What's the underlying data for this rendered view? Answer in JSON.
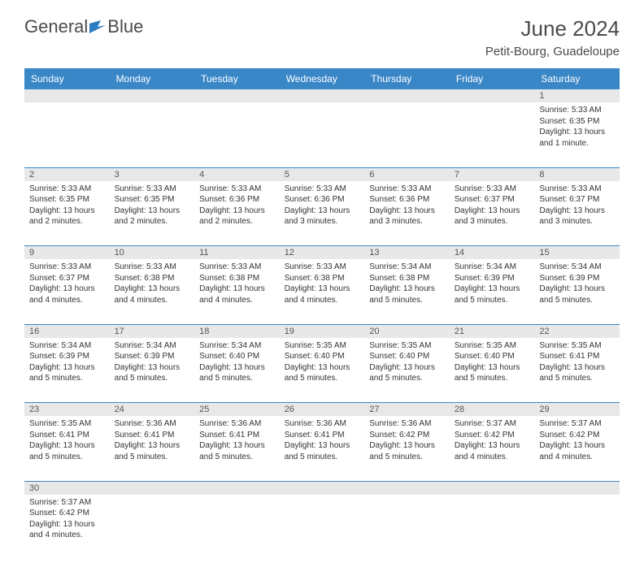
{
  "brand": {
    "name_part1": "General",
    "name_part2": "Blue"
  },
  "header": {
    "title": "June 2024",
    "location": "Petit-Bourg, Guadeloupe"
  },
  "colors": {
    "header_bg": "#3a87c8",
    "header_text": "#ffffff",
    "cell_border": "#3a87c8",
    "daynum_bg": "#e8e8e8",
    "text": "#333333"
  },
  "dayNames": [
    "Sunday",
    "Monday",
    "Tuesday",
    "Wednesday",
    "Thursday",
    "Friday",
    "Saturday"
  ],
  "weeks": [
    [
      null,
      null,
      null,
      null,
      null,
      null,
      {
        "n": "1",
        "sr": "Sunrise: 5:33 AM",
        "ss": "Sunset: 6:35 PM",
        "dl1": "Daylight: 13 hours",
        "dl2": "and 1 minute."
      }
    ],
    [
      {
        "n": "2",
        "sr": "Sunrise: 5:33 AM",
        "ss": "Sunset: 6:35 PM",
        "dl1": "Daylight: 13 hours",
        "dl2": "and 2 minutes."
      },
      {
        "n": "3",
        "sr": "Sunrise: 5:33 AM",
        "ss": "Sunset: 6:35 PM",
        "dl1": "Daylight: 13 hours",
        "dl2": "and 2 minutes."
      },
      {
        "n": "4",
        "sr": "Sunrise: 5:33 AM",
        "ss": "Sunset: 6:36 PM",
        "dl1": "Daylight: 13 hours",
        "dl2": "and 2 minutes."
      },
      {
        "n": "5",
        "sr": "Sunrise: 5:33 AM",
        "ss": "Sunset: 6:36 PM",
        "dl1": "Daylight: 13 hours",
        "dl2": "and 3 minutes."
      },
      {
        "n": "6",
        "sr": "Sunrise: 5:33 AM",
        "ss": "Sunset: 6:36 PM",
        "dl1": "Daylight: 13 hours",
        "dl2": "and 3 minutes."
      },
      {
        "n": "7",
        "sr": "Sunrise: 5:33 AM",
        "ss": "Sunset: 6:37 PM",
        "dl1": "Daylight: 13 hours",
        "dl2": "and 3 minutes."
      },
      {
        "n": "8",
        "sr": "Sunrise: 5:33 AM",
        "ss": "Sunset: 6:37 PM",
        "dl1": "Daylight: 13 hours",
        "dl2": "and 3 minutes."
      }
    ],
    [
      {
        "n": "9",
        "sr": "Sunrise: 5:33 AM",
        "ss": "Sunset: 6:37 PM",
        "dl1": "Daylight: 13 hours",
        "dl2": "and 4 minutes."
      },
      {
        "n": "10",
        "sr": "Sunrise: 5:33 AM",
        "ss": "Sunset: 6:38 PM",
        "dl1": "Daylight: 13 hours",
        "dl2": "and 4 minutes."
      },
      {
        "n": "11",
        "sr": "Sunrise: 5:33 AM",
        "ss": "Sunset: 6:38 PM",
        "dl1": "Daylight: 13 hours",
        "dl2": "and 4 minutes."
      },
      {
        "n": "12",
        "sr": "Sunrise: 5:33 AM",
        "ss": "Sunset: 6:38 PM",
        "dl1": "Daylight: 13 hours",
        "dl2": "and 4 minutes."
      },
      {
        "n": "13",
        "sr": "Sunrise: 5:34 AM",
        "ss": "Sunset: 6:38 PM",
        "dl1": "Daylight: 13 hours",
        "dl2": "and 5 minutes."
      },
      {
        "n": "14",
        "sr": "Sunrise: 5:34 AM",
        "ss": "Sunset: 6:39 PM",
        "dl1": "Daylight: 13 hours",
        "dl2": "and 5 minutes."
      },
      {
        "n": "15",
        "sr": "Sunrise: 5:34 AM",
        "ss": "Sunset: 6:39 PM",
        "dl1": "Daylight: 13 hours",
        "dl2": "and 5 minutes."
      }
    ],
    [
      {
        "n": "16",
        "sr": "Sunrise: 5:34 AM",
        "ss": "Sunset: 6:39 PM",
        "dl1": "Daylight: 13 hours",
        "dl2": "and 5 minutes."
      },
      {
        "n": "17",
        "sr": "Sunrise: 5:34 AM",
        "ss": "Sunset: 6:39 PM",
        "dl1": "Daylight: 13 hours",
        "dl2": "and 5 minutes."
      },
      {
        "n": "18",
        "sr": "Sunrise: 5:34 AM",
        "ss": "Sunset: 6:40 PM",
        "dl1": "Daylight: 13 hours",
        "dl2": "and 5 minutes."
      },
      {
        "n": "19",
        "sr": "Sunrise: 5:35 AM",
        "ss": "Sunset: 6:40 PM",
        "dl1": "Daylight: 13 hours",
        "dl2": "and 5 minutes."
      },
      {
        "n": "20",
        "sr": "Sunrise: 5:35 AM",
        "ss": "Sunset: 6:40 PM",
        "dl1": "Daylight: 13 hours",
        "dl2": "and 5 minutes."
      },
      {
        "n": "21",
        "sr": "Sunrise: 5:35 AM",
        "ss": "Sunset: 6:40 PM",
        "dl1": "Daylight: 13 hours",
        "dl2": "and 5 minutes."
      },
      {
        "n": "22",
        "sr": "Sunrise: 5:35 AM",
        "ss": "Sunset: 6:41 PM",
        "dl1": "Daylight: 13 hours",
        "dl2": "and 5 minutes."
      }
    ],
    [
      {
        "n": "23",
        "sr": "Sunrise: 5:35 AM",
        "ss": "Sunset: 6:41 PM",
        "dl1": "Daylight: 13 hours",
        "dl2": "and 5 minutes."
      },
      {
        "n": "24",
        "sr": "Sunrise: 5:36 AM",
        "ss": "Sunset: 6:41 PM",
        "dl1": "Daylight: 13 hours",
        "dl2": "and 5 minutes."
      },
      {
        "n": "25",
        "sr": "Sunrise: 5:36 AM",
        "ss": "Sunset: 6:41 PM",
        "dl1": "Daylight: 13 hours",
        "dl2": "and 5 minutes."
      },
      {
        "n": "26",
        "sr": "Sunrise: 5:36 AM",
        "ss": "Sunset: 6:41 PM",
        "dl1": "Daylight: 13 hours",
        "dl2": "and 5 minutes."
      },
      {
        "n": "27",
        "sr": "Sunrise: 5:36 AM",
        "ss": "Sunset: 6:42 PM",
        "dl1": "Daylight: 13 hours",
        "dl2": "and 5 minutes."
      },
      {
        "n": "28",
        "sr": "Sunrise: 5:37 AM",
        "ss": "Sunset: 6:42 PM",
        "dl1": "Daylight: 13 hours",
        "dl2": "and 4 minutes."
      },
      {
        "n": "29",
        "sr": "Sunrise: 5:37 AM",
        "ss": "Sunset: 6:42 PM",
        "dl1": "Daylight: 13 hours",
        "dl2": "and 4 minutes."
      }
    ],
    [
      {
        "n": "30",
        "sr": "Sunrise: 5:37 AM",
        "ss": "Sunset: 6:42 PM",
        "dl1": "Daylight: 13 hours",
        "dl2": "and 4 minutes."
      },
      null,
      null,
      null,
      null,
      null,
      null
    ]
  ]
}
